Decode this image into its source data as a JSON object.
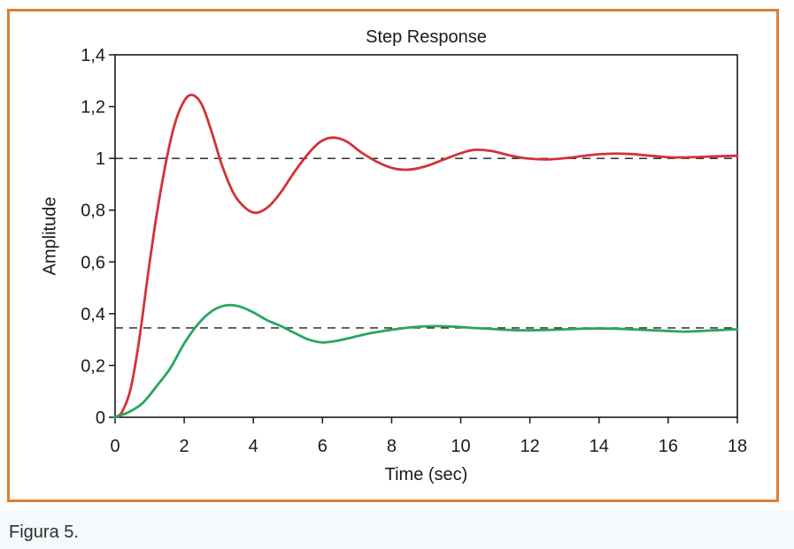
{
  "figure": {
    "caption": "Figura 5."
  },
  "colors": {
    "frame_orange": "#dd7e32",
    "series_red": "#d23238",
    "series_green": "#28a55f",
    "axis_black": "#1a1a1a",
    "footer_tint": "#f5f9fb"
  },
  "chart_data": {
    "type": "line",
    "title": "Step Response",
    "xlabel": "Time (sec)",
    "ylabel": "Amplitude",
    "xlim": [
      0,
      18
    ],
    "ylim": [
      0,
      1.4
    ],
    "grid": false,
    "legend": "none",
    "box": true,
    "x_ticks": [
      0,
      2,
      4,
      6,
      8,
      10,
      12,
      14,
      16,
      18
    ],
    "x_tick_labels": [
      "0",
      "2",
      "4",
      "6",
      "8",
      "10",
      "12",
      "14",
      "16",
      "18"
    ],
    "y_ticks": [
      0,
      0.2,
      0.4,
      0.6,
      0.8,
      1,
      1.2,
      1.4
    ],
    "y_tick_labels": [
      "0",
      "0,2",
      "0,4",
      "0,6",
      "0,8",
      "1",
      "1,2",
      "1,4"
    ],
    "reference_lines": [
      {
        "y": 1.0,
        "style": "dashed",
        "color": "#1a1a1a"
      },
      {
        "y": 0.345,
        "style": "dashed",
        "color": "#1a1a1a"
      }
    ],
    "series": [
      {
        "id": "red-response",
        "color": "#d23238",
        "points": [
          [
            0,
            0
          ],
          [
            0.2,
            0.02
          ],
          [
            0.45,
            0.11
          ],
          [
            0.7,
            0.3
          ],
          [
            0.95,
            0.55
          ],
          [
            1.2,
            0.78
          ],
          [
            1.45,
            0.97
          ],
          [
            1.7,
            1.12
          ],
          [
            1.95,
            1.21
          ],
          [
            2.2,
            1.245
          ],
          [
            2.5,
            1.21
          ],
          [
            2.8,
            1.1
          ],
          [
            3.1,
            0.97
          ],
          [
            3.45,
            0.86
          ],
          [
            3.8,
            0.805
          ],
          [
            4.1,
            0.79
          ],
          [
            4.45,
            0.815
          ],
          [
            4.8,
            0.87
          ],
          [
            5.2,
            0.95
          ],
          [
            5.6,
            1.02
          ],
          [
            5.95,
            1.065
          ],
          [
            6.3,
            1.08
          ],
          [
            6.7,
            1.065
          ],
          [
            7.1,
            1.025
          ],
          [
            7.6,
            0.985
          ],
          [
            8.1,
            0.96
          ],
          [
            8.55,
            0.957
          ],
          [
            9.0,
            0.97
          ],
          [
            9.5,
            0.995
          ],
          [
            10.0,
            1.02
          ],
          [
            10.4,
            1.033
          ],
          [
            10.9,
            1.028
          ],
          [
            11.4,
            1.012
          ],
          [
            11.9,
            1.0
          ],
          [
            12.5,
            0.996
          ],
          [
            13.1,
            1.002
          ],
          [
            13.7,
            1.012
          ],
          [
            14.3,
            1.018
          ],
          [
            14.9,
            1.017
          ],
          [
            15.5,
            1.01
          ],
          [
            16.1,
            1.004
          ],
          [
            16.8,
            1.005
          ],
          [
            17.4,
            1.008
          ],
          [
            18,
            1.01
          ]
        ]
      },
      {
        "id": "green-response",
        "color": "#28a55f",
        "points": [
          [
            0,
            0
          ],
          [
            0.4,
            0.02
          ],
          [
            0.8,
            0.055
          ],
          [
            1.2,
            0.12
          ],
          [
            1.6,
            0.19
          ],
          [
            2.0,
            0.285
          ],
          [
            2.4,
            0.36
          ],
          [
            2.8,
            0.41
          ],
          [
            3.2,
            0.432
          ],
          [
            3.6,
            0.428
          ],
          [
            4.0,
            0.405
          ],
          [
            4.4,
            0.375
          ],
          [
            4.8,
            0.352
          ],
          [
            5.2,
            0.325
          ],
          [
            5.6,
            0.3
          ],
          [
            6.0,
            0.289
          ],
          [
            6.4,
            0.295
          ],
          [
            6.9,
            0.31
          ],
          [
            7.4,
            0.325
          ],
          [
            8.0,
            0.338
          ],
          [
            8.6,
            0.348
          ],
          [
            9.2,
            0.352
          ],
          [
            9.8,
            0.35
          ],
          [
            10.4,
            0.345
          ],
          [
            11.0,
            0.34
          ],
          [
            11.7,
            0.336
          ],
          [
            12.4,
            0.337
          ],
          [
            13.1,
            0.34
          ],
          [
            13.8,
            0.343
          ],
          [
            14.5,
            0.342
          ],
          [
            15.2,
            0.338
          ],
          [
            15.9,
            0.334
          ],
          [
            16.5,
            0.331
          ],
          [
            17.2,
            0.335
          ],
          [
            18,
            0.34
          ]
        ]
      }
    ]
  }
}
